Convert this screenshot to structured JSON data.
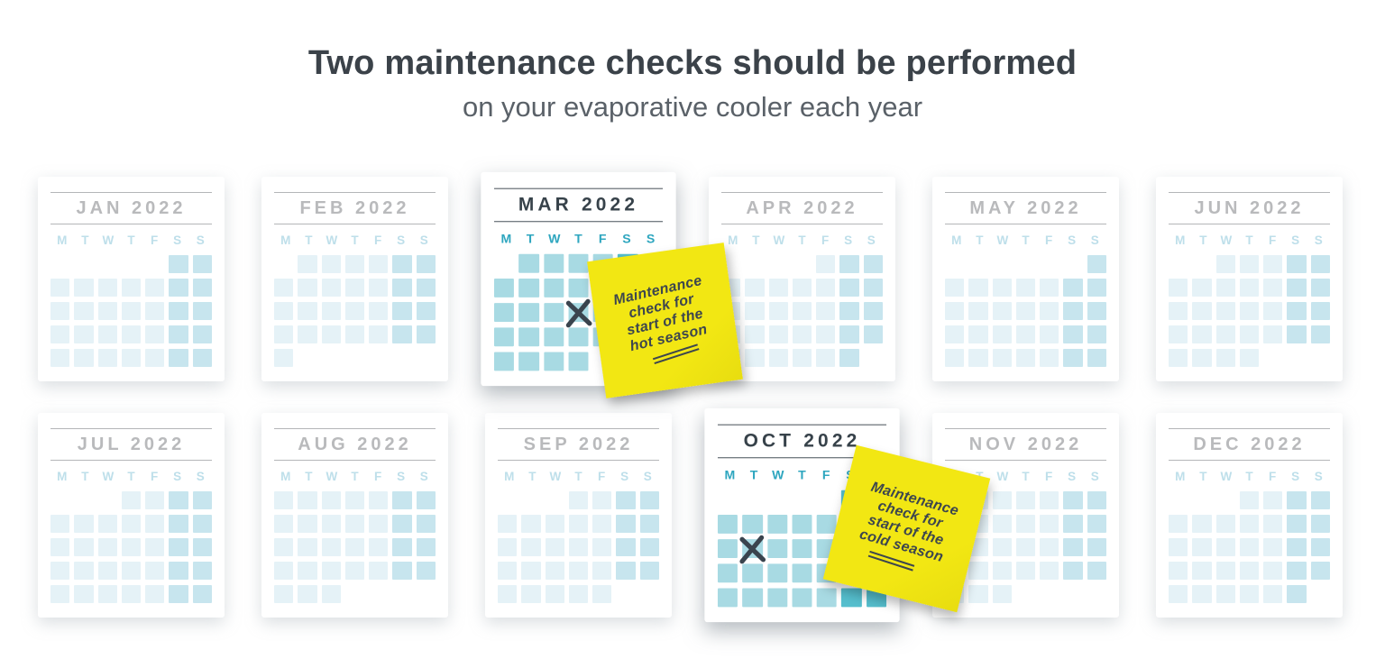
{
  "header": {
    "title": "Two maintenance checks should be performed",
    "subtitle": "on your evaporative cooler each year"
  },
  "day_headers": [
    "M",
    "T",
    "W",
    "T",
    "F",
    "S",
    "S"
  ],
  "months": [
    {
      "label": "JAN 2022",
      "state": "inactive",
      "grid": [
        ".....ee",
        "wwwwwee",
        "wwwwwee",
        "wwwwwee",
        "wwwwwee"
      ]
    },
    {
      "label": "FEB 2022",
      "state": "inactive",
      "grid": [
        ".wwwwee",
        "wwwwwee",
        "wwwwwee",
        "wwwwwee",
        "w......"
      ]
    },
    {
      "label": "MAR 2022",
      "state": "active",
      "grid": [
        ".wwwwee",
        "wwwwwee",
        "wwwwwee",
        "wwwwwee",
        "wwww..."
      ],
      "x_mark": {
        "row": 3,
        "col": 4
      }
    },
    {
      "label": "APR 2022",
      "state": "inactive",
      "grid": [
        "....wee",
        "wwwwwee",
        "wwwwwee",
        "wwwwwee",
        "wwwwwe."
      ]
    },
    {
      "label": "MAY 2022",
      "state": "inactive",
      "grid": [
        "......e",
        "wwwwwee",
        "wwwwwee",
        "wwwwwee",
        "wwwwwee"
      ]
    },
    {
      "label": "JUN 2022",
      "state": "inactive",
      "grid": [
        "..wwwee",
        "wwwwwee",
        "wwwwwee",
        "wwwwwee",
        "wwww..."
      ]
    },
    {
      "label": "JUL 2022",
      "state": "inactive",
      "grid": [
        "...wwee",
        "wwwwwee",
        "wwwwwee",
        "wwwwwee",
        "wwwwwee"
      ]
    },
    {
      "label": "AUG 2022",
      "state": "inactive",
      "grid": [
        "wwwwwee",
        "wwwwwee",
        "wwwwwee",
        "wwwwwee",
        "www...."
      ]
    },
    {
      "label": "SEP 2022",
      "state": "inactive",
      "grid": [
        "...wwee",
        "wwwwwee",
        "wwwwwee",
        "wwwwwee",
        "wwwww.."
      ]
    },
    {
      "label": "OCT 2022",
      "state": "active",
      "grid": [
        ".....ee",
        "wwwwwee",
        "wwwwwee",
        "wwwwwee",
        "wwwwwee"
      ],
      "x_mark": {
        "row": 3,
        "col": 2
      }
    },
    {
      "label": "NOV 2022",
      "state": "inactive",
      "grid": [
        ".wwwwee",
        "wwwwwee",
        "wwwwwee",
        "wwwwwee",
        "www...."
      ]
    },
    {
      "label": "DEC 2022",
      "state": "inactive",
      "grid": [
        "...wwee",
        "wwwwwee",
        "wwwwwee",
        "wwwwwee",
        "wwwwwe."
      ]
    }
  ],
  "notes": [
    {
      "id": "hot",
      "lines": [
        "Maintenance",
        "check for",
        "start of the",
        "hot season"
      ]
    },
    {
      "id": "cold",
      "lines": [
        "Maintenance",
        "check for",
        "start of the",
        "cold season"
      ]
    }
  ],
  "colors": {
    "header_title": "#3b4249",
    "header_subtitle": "#5a6168",
    "pale_title": "#b9babc",
    "pale_rule": "#b4b6b8",
    "pale_day": "#bedfea",
    "pale_weekday": "#e5f2f7",
    "pale_weekend": "#c7e5ee",
    "active_title": "#37424a",
    "active_rule": "#4d575f",
    "active_day": "#2ea6bf",
    "active_weekday": "#a8dae3",
    "active_weekend": "#55becd",
    "x_mark": "#3a444e",
    "note_bg": "#f2e713",
    "note_text": "#3d464e"
  }
}
